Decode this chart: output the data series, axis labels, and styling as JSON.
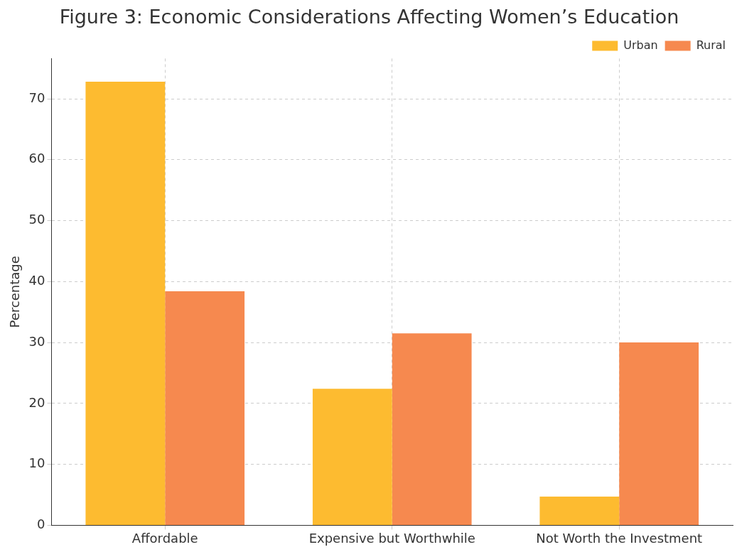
{
  "chart_data": {
    "type": "bar",
    "title": "Figure 3: Economic Considerations Affecting Women’s Education",
    "ylabel": "Percentage",
    "categories": [
      "Affordable",
      "Expensive but Worthwhile",
      "Not Worth the Investment"
    ],
    "series": [
      {
        "name": "Urban",
        "color": "#fdbb30",
        "values": [
          72.8,
          22.4,
          4.7
        ]
      },
      {
        "name": "Rural",
        "color": "#f6894f",
        "values": [
          38.4,
          31.5,
          30.0
        ]
      }
    ],
    "ylim": [
      0,
      76.6
    ],
    "yticks": [
      0,
      10,
      20,
      30,
      40,
      50,
      60,
      70
    ],
    "grid": true,
    "legend": "top right"
  }
}
